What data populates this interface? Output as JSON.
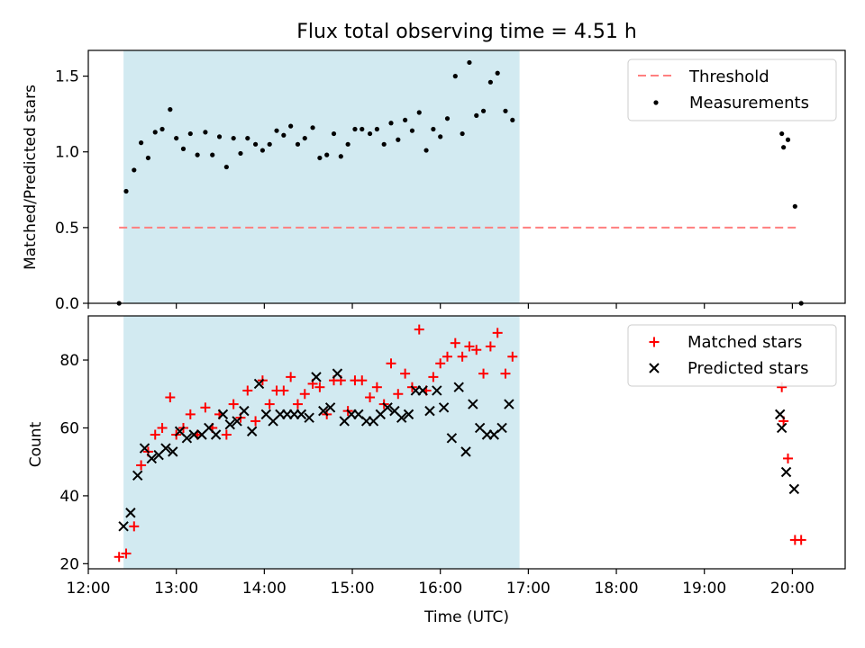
{
  "colors": {
    "shade": "#add8e6",
    "threshold": "#ff7f7f",
    "measurement": "#000000",
    "matched": "#ff0000",
    "predicted": "#000000"
  },
  "chart_data": {
    "type": "scatter",
    "title": "Flux total observing time = 4.51 h",
    "xlabel": "Time (UTC)",
    "x_unit": "hours of day (UTC)",
    "xlim": [
      12.0,
      20.6
    ],
    "x_ticks": [
      {
        "value": 12.0,
        "label": "12:00"
      },
      {
        "value": 13.0,
        "label": "13:00"
      },
      {
        "value": 14.0,
        "label": "14:00"
      },
      {
        "value": 15.0,
        "label": "15:00"
      },
      {
        "value": 16.0,
        "label": "16:00"
      },
      {
        "value": 17.0,
        "label": "17:00"
      },
      {
        "value": 18.0,
        "label": "18:00"
      },
      {
        "value": 19.0,
        "label": "19:00"
      },
      {
        "value": 20.0,
        "label": "20:00"
      }
    ],
    "shaded_interval": [
      12.4,
      16.9
    ],
    "panels": [
      {
        "name": "ratio",
        "ylabel": "Matched/Predicted stars",
        "ylim": [
          0.0,
          1.67
        ],
        "y_ticks": [
          {
            "value": 0.0,
            "label": "0.0"
          },
          {
            "value": 0.5,
            "label": "0.5"
          },
          {
            "value": 1.0,
            "label": "1.0"
          },
          {
            "value": 1.5,
            "label": "1.5"
          }
        ],
        "legend": "top-right",
        "threshold": {
          "name": "Threshold",
          "value": 0.5,
          "x_range": [
            12.35,
            20.05
          ]
        },
        "series": [
          {
            "name": "Measurements",
            "marker": "dot",
            "points": [
              [
                12.35,
                0.0
              ],
              [
                12.43,
                0.74
              ],
              [
                12.52,
                0.88
              ],
              [
                12.6,
                1.06
              ],
              [
                12.68,
                0.96
              ],
              [
                12.76,
                1.13
              ],
              [
                12.84,
                1.15
              ],
              [
                12.93,
                1.28
              ],
              [
                13.0,
                1.09
              ],
              [
                13.08,
                1.02
              ],
              [
                13.16,
                1.12
              ],
              [
                13.24,
                0.98
              ],
              [
                13.33,
                1.13
              ],
              [
                13.41,
                0.98
              ],
              [
                13.49,
                1.1
              ],
              [
                13.57,
                0.9
              ],
              [
                13.65,
                1.09
              ],
              [
                13.73,
                0.99
              ],
              [
                13.81,
                1.09
              ],
              [
                13.9,
                1.05
              ],
              [
                13.98,
                1.01
              ],
              [
                14.06,
                1.05
              ],
              [
                14.14,
                1.14
              ],
              [
                14.22,
                1.11
              ],
              [
                14.3,
                1.17
              ],
              [
                14.38,
                1.05
              ],
              [
                14.46,
                1.09
              ],
              [
                14.55,
                1.16
              ],
              [
                14.63,
                0.96
              ],
              [
                14.71,
                0.98
              ],
              [
                14.79,
                1.12
              ],
              [
                14.87,
                0.97
              ],
              [
                14.95,
                1.05
              ],
              [
                15.03,
                1.15
              ],
              [
                15.11,
                1.15
              ],
              [
                15.2,
                1.12
              ],
              [
                15.28,
                1.15
              ],
              [
                15.36,
                1.05
              ],
              [
                15.44,
                1.19
              ],
              [
                15.52,
                1.08
              ],
              [
                15.6,
                1.21
              ],
              [
                15.68,
                1.14
              ],
              [
                15.76,
                1.26
              ],
              [
                15.84,
                1.01
              ],
              [
                15.92,
                1.15
              ],
              [
                16.0,
                1.1
              ],
              [
                16.08,
                1.22
              ],
              [
                16.17,
                1.5
              ],
              [
                16.25,
                1.12
              ],
              [
                16.33,
                1.59
              ],
              [
                16.41,
                1.24
              ],
              [
                16.49,
                1.27
              ],
              [
                16.57,
                1.46
              ],
              [
                16.65,
                1.52
              ],
              [
                16.74,
                1.27
              ],
              [
                16.82,
                1.21
              ],
              [
                19.88,
                1.12
              ],
              [
                19.9,
                1.03
              ],
              [
                19.95,
                1.08
              ],
              [
                20.03,
                0.64
              ],
              [
                20.1,
                0.0
              ]
            ]
          }
        ]
      },
      {
        "name": "count",
        "ylabel": "Count",
        "ylim": [
          18.5,
          93
        ],
        "y_ticks": [
          {
            "value": 20,
            "label": "20"
          },
          {
            "value": 40,
            "label": "40"
          },
          {
            "value": 60,
            "label": "60"
          },
          {
            "value": 80,
            "label": "80"
          }
        ],
        "legend": "top-right",
        "series": [
          {
            "name": "Matched stars",
            "marker": "plus",
            "points": [
              [
                12.35,
                22
              ],
              [
                12.43,
                23
              ],
              [
                12.52,
                31
              ],
              [
                12.6,
                49
              ],
              [
                12.68,
                53
              ],
              [
                12.76,
                58
              ],
              [
                12.84,
                60
              ],
              [
                12.93,
                69
              ],
              [
                13.0,
                58
              ],
              [
                13.08,
                60
              ],
              [
                13.16,
                64
              ],
              [
                13.24,
                58
              ],
              [
                13.33,
                66
              ],
              [
                13.41,
                60
              ],
              [
                13.49,
                64
              ],
              [
                13.57,
                58
              ],
              [
                13.65,
                67
              ],
              [
                13.73,
                63
              ],
              [
                13.81,
                71
              ],
              [
                13.9,
                62
              ],
              [
                13.98,
                74
              ],
              [
                14.06,
                67
              ],
              [
                14.14,
                71
              ],
              [
                14.22,
                71
              ],
              [
                14.3,
                75
              ],
              [
                14.38,
                67
              ],
              [
                14.46,
                70
              ],
              [
                14.55,
                73
              ],
              [
                14.63,
                72
              ],
              [
                14.71,
                64
              ],
              [
                14.79,
                74
              ],
              [
                14.87,
                74
              ],
              [
                14.95,
                65
              ],
              [
                15.03,
                74
              ],
              [
                15.11,
                74
              ],
              [
                15.2,
                69
              ],
              [
                15.28,
                72
              ],
              [
                15.36,
                67
              ],
              [
                15.44,
                79
              ],
              [
                15.52,
                70
              ],
              [
                15.6,
                76
              ],
              [
                15.68,
                72
              ],
              [
                15.76,
                89
              ],
              [
                15.84,
                71
              ],
              [
                15.92,
                75
              ],
              [
                16.0,
                79
              ],
              [
                16.08,
                81
              ],
              [
                16.17,
                85
              ],
              [
                16.25,
                81
              ],
              [
                16.33,
                84
              ],
              [
                16.41,
                83
              ],
              [
                16.49,
                76
              ],
              [
                16.57,
                84
              ],
              [
                16.65,
                88
              ],
              [
                16.74,
                76
              ],
              [
                16.82,
                81
              ],
              [
                19.88,
                72
              ],
              [
                19.9,
                62
              ],
              [
                19.95,
                51
              ],
              [
                20.03,
                27
              ],
              [
                20.1,
                27
              ]
            ]
          },
          {
            "name": "Predicted stars",
            "marker": "x",
            "points": [
              [
                12.4,
                31
              ],
              [
                12.48,
                35
              ],
              [
                12.56,
                46
              ],
              [
                12.64,
                54
              ],
              [
                12.72,
                51
              ],
              [
                12.8,
                52
              ],
              [
                12.88,
                54
              ],
              [
                12.96,
                53
              ],
              [
                13.04,
                59
              ],
              [
                13.12,
                57
              ],
              [
                13.2,
                58
              ],
              [
                13.29,
                58
              ],
              [
                13.37,
                60
              ],
              [
                13.45,
                58
              ],
              [
                13.53,
                64
              ],
              [
                13.61,
                61
              ],
              [
                13.69,
                62
              ],
              [
                13.77,
                65
              ],
              [
                13.86,
                59
              ],
              [
                13.94,
                73
              ],
              [
                14.02,
                64
              ],
              [
                14.1,
                62
              ],
              [
                14.18,
                64
              ],
              [
                14.26,
                64
              ],
              [
                14.34,
                64
              ],
              [
                14.42,
                64
              ],
              [
                14.51,
                63
              ],
              [
                14.59,
                75
              ],
              [
                14.67,
                65
              ],
              [
                14.75,
                66
              ],
              [
                14.83,
                76
              ],
              [
                14.91,
                62
              ],
              [
                14.99,
                64
              ],
              [
                15.07,
                64
              ],
              [
                15.16,
                62
              ],
              [
                15.24,
                62
              ],
              [
                15.32,
                64
              ],
              [
                15.4,
                66
              ],
              [
                15.48,
                65
              ],
              [
                15.56,
                63
              ],
              [
                15.64,
                64
              ],
              [
                15.72,
                71
              ],
              [
                15.8,
                71
              ],
              [
                15.88,
                65
              ],
              [
                15.96,
                71
              ],
              [
                16.04,
                66
              ],
              [
                16.13,
                57
              ],
              [
                16.21,
                72
              ],
              [
                16.29,
                53
              ],
              [
                16.37,
                67
              ],
              [
                16.45,
                60
              ],
              [
                16.53,
                58
              ],
              [
                16.61,
                58
              ],
              [
                16.7,
                60
              ],
              [
                16.78,
                67
              ],
              [
                19.86,
                64
              ],
              [
                19.88,
                60
              ],
              [
                19.93,
                47
              ],
              [
                20.02,
                42
              ]
            ]
          }
        ]
      }
    ]
  }
}
